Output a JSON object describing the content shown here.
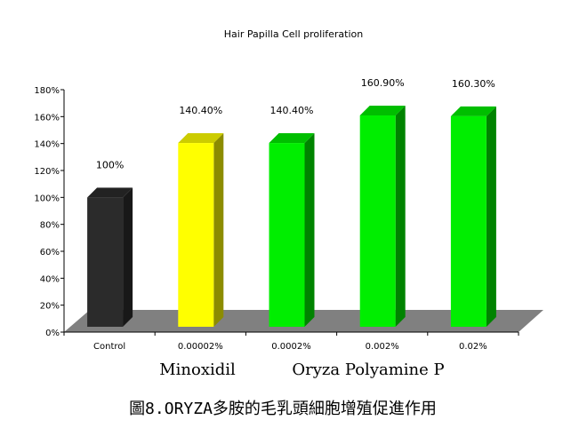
{
  "chart_data": {
    "type": "bar",
    "title": "Hair Papilla Cell proliferation",
    "categories": [
      "Control",
      "0.00002%",
      "0.0002%",
      "0.002%",
      "0.02%"
    ],
    "values": [
      100,
      140.4,
      140.4,
      160.9,
      160.3
    ],
    "data_labels": [
      "100%",
      "140.40%",
      "140.40%",
      "160.90%",
      "160.30%"
    ],
    "bar_colors": [
      "#2b2b2b",
      "#ffff00",
      "#00ee00",
      "#00ee00",
      "#00ee00"
    ],
    "yticks": [
      "0%",
      "20%",
      "40%",
      "60%",
      "80%",
      "100%",
      "120%",
      "140%",
      "160%",
      "180%"
    ],
    "ylim": [
      0,
      180
    ],
    "grid": false,
    "groups": [
      "Minoxidil",
      "Oryza Polyamine P"
    ],
    "xlabel": "",
    "ylabel": "",
    "style": "3d"
  },
  "caption": "圖8.ORYZA多胺的毛乳頭細胞增殖促進作用"
}
